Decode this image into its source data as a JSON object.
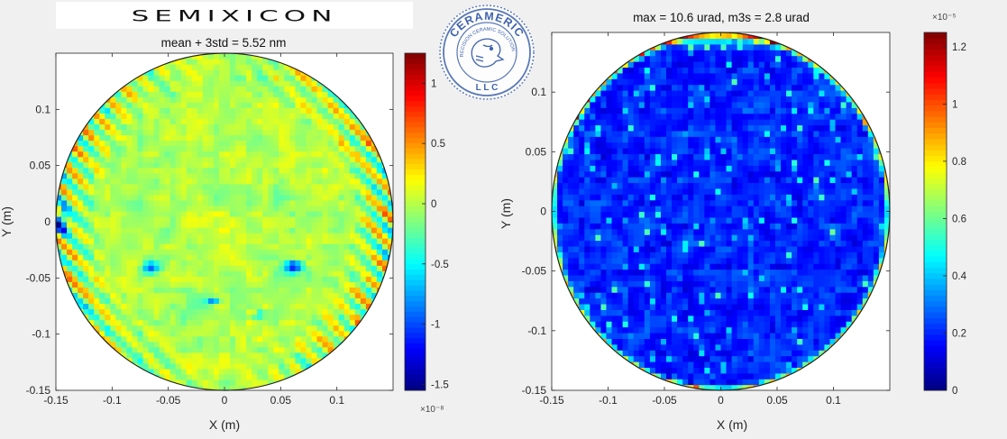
{
  "branding": {
    "left_logo": "SEMIXICON",
    "seal_top": "CERAMERIC",
    "seal_ring": "PRECISION CERAMIC SOLUTIONS",
    "seal_bottom": "L L C"
  },
  "chart_data": [
    {
      "type": "heatmap",
      "title": "mean + 3std = 5.52 nm",
      "xlabel": "X (m)",
      "ylabel": "Y (m)",
      "xlim": [
        -0.15,
        0.15
      ],
      "ylim": [
        -0.15,
        0.15
      ],
      "xticks": [
        "-0.15",
        "-0.1",
        "-0.05",
        "0",
        "0.05",
        "0.1"
      ],
      "yticks": [
        "0.1",
        "0.05",
        "0",
        "-0.05",
        "-0.1",
        "-0.15"
      ],
      "colorbar": {
        "colormap": "jet",
        "range": [
          -1.55e-08,
          1.25e-08
        ],
        "ticks": [
          "1",
          "0.5",
          "0",
          "-0.5",
          "-1",
          "-1.5"
        ],
        "exponent": "×10⁻⁸"
      },
      "grid": false
    },
    {
      "type": "heatmap",
      "title": "max = 10.6 urad, m3s = 2.8 urad",
      "xlabel": "X (m)",
      "ylabel": "Y (m)",
      "xlim": [
        -0.15,
        0.15
      ],
      "ylim": [
        -0.15,
        0.15
      ],
      "xticks": [
        "-0.15",
        "-0.1",
        "-0.05",
        "0",
        "0.05",
        "0.1"
      ],
      "yticks": [
        "0.1",
        "0.05",
        "0",
        "-0.05",
        "-0.1",
        "-0.15"
      ],
      "colorbar": {
        "colormap": "jet",
        "range": [
          0,
          1.25e-05
        ],
        "ticks": [
          "1.2",
          "1",
          "0.8",
          "0.6",
          "0.4",
          "0.2",
          "0"
        ],
        "exponent": "×10⁻⁵"
      },
      "grid": false
    }
  ]
}
